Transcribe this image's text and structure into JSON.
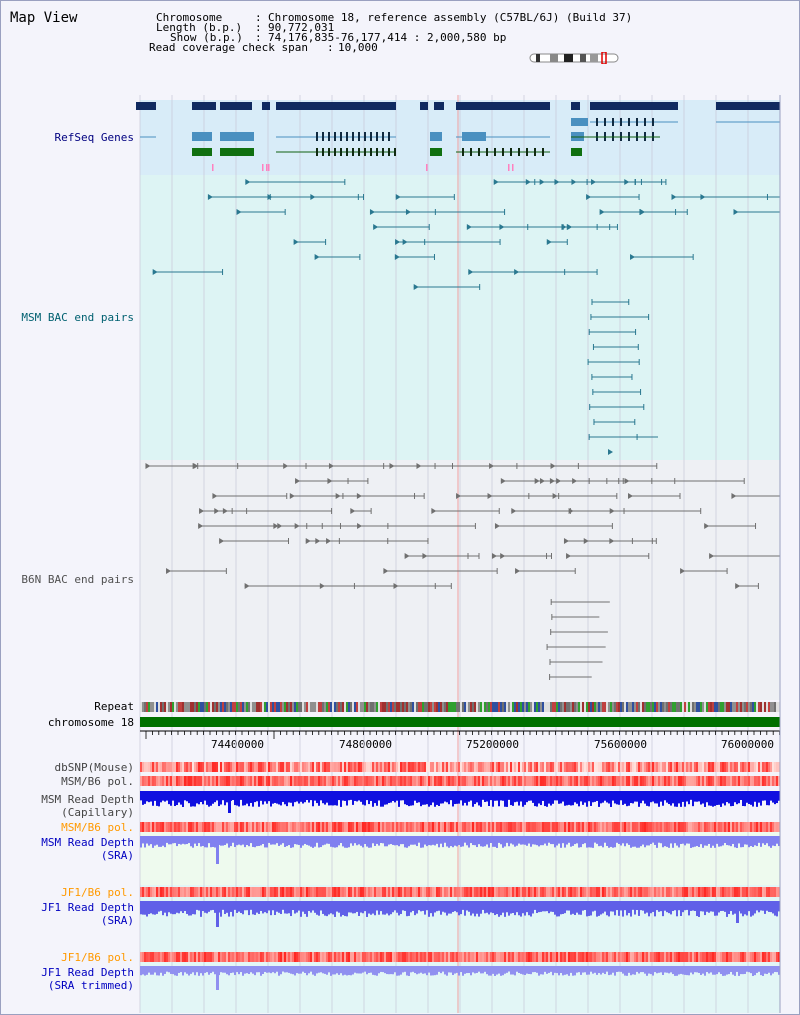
{
  "app": {
    "title": "Map View"
  },
  "header": {
    "chromosome_key": "Chromosome",
    "chromosome_val": "Chromosome 18, reference assembly (C57BL/6J) (Build 37)",
    "length_key": "Length (b.p.)",
    "length_val": "90,772,031",
    "show_key": "Show (b.p.)",
    "show_val": "74,176,835-76,177,414 : 2,000,580 bp",
    "coverage_key": "Read coverage check span",
    "coverage_val": "10,000"
  },
  "tracks": {
    "refseq": "RefSeq Genes",
    "msm_bac": "MSM BAC end pairs",
    "b6n_bac": "B6N BAC end pairs",
    "repeat": "Repeat",
    "chromosome": "chromosome 18",
    "dbsnp": "dbSNP(Mouse)",
    "msm_b6_pol_1": "MSM/B6 pol.",
    "msm_read_depth_cap_1": "MSM Read Depth",
    "msm_read_depth_cap_2": "(Capillary)",
    "msm_b6_pol_2": "MSM/B6 pol.",
    "msm_read_depth_sra_1": "MSM Read Depth",
    "msm_read_depth_sra_2": "(SRA)",
    "jf1_b6_pol_1": "JF1/B6 pol.",
    "jf1_read_depth_sra_1": "JF1 Read Depth",
    "jf1_read_depth_sra_2": "(SRA)",
    "jf1_b6_pol_2": "JF1/B6 pol.",
    "jf1_read_depth_trim_1": "JF1 Read Depth",
    "jf1_read_depth_trim_2": "(SRA trimmed)"
  },
  "axis": {
    "ticks": [
      "74400000",
      "74800000",
      "75200000",
      "75600000",
      "76000000"
    ]
  },
  "colors": {
    "refseq_label": "#000080",
    "msm_bac_label": "#006070",
    "b6n_bac_label": "#505050",
    "pol_label_orange": "#ff9900",
    "depth_label_blue": "#0000c0",
    "chromosome_bar": "#007000"
  }
}
